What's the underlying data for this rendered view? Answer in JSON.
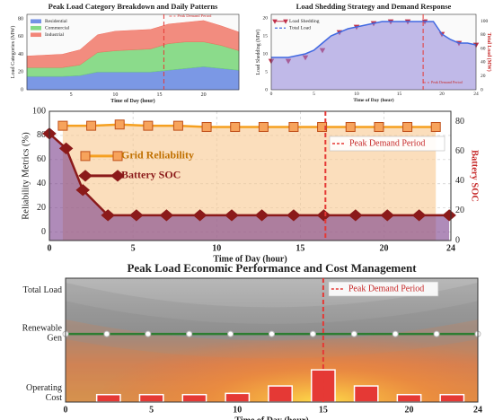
{
  "chart_data": [
    {
      "type": "area",
      "title": "Peak Load Category Breakdown and Daily Patterns",
      "xlabel": "Time of Day (hour)",
      "ylabel": "Load Categories (MW)",
      "x": [
        0,
        2,
        4,
        6,
        8,
        10,
        12,
        14,
        16,
        18,
        20,
        22,
        24
      ],
      "series": [
        {
          "name": "Residential",
          "color": "#5b7fe0",
          "values": [
            15,
            15,
            15,
            16,
            20,
            20,
            20,
            20,
            22,
            24,
            26,
            24,
            22
          ]
        },
        {
          "name": "Commercial",
          "color": "#6fd36f",
          "values": [
            10,
            10,
            10,
            12,
            22,
            24,
            25,
            26,
            30,
            30,
            28,
            26,
            22
          ]
        },
        {
          "name": "Industrial",
          "color": "#f07060",
          "values": [
            13,
            14,
            15,
            17,
            20,
            22,
            22,
            22,
            22,
            22,
            24,
            22,
            21
          ]
        }
      ],
      "xlim": [
        0,
        24
      ],
      "xticks": [
        5,
        10,
        15,
        20
      ],
      "ylim": [
        0,
        85
      ],
      "yticks": [
        0,
        20,
        40,
        60,
        80
      ],
      "legend": "upper left",
      "peak": {
        "x": 15.5,
        "label": "Peak Demand Period"
      }
    },
    {
      "type": "line",
      "title": "Load Shedding Strategy and Demand Response",
      "xlabel": "Time of Day (hour)",
      "ylabel": "Load Shedding (MW)",
      "y2label": "Total Load (MW)",
      "x": [
        0,
        1,
        2,
        3,
        4,
        5,
        6,
        7,
        8,
        9,
        10,
        11,
        12,
        13,
        14,
        15,
        16,
        17,
        18,
        19,
        20,
        21,
        22,
        23,
        24
      ],
      "series": [
        {
          "name": "Load Shedding",
          "color": "#c0304a",
          "marker": "triangle",
          "linestyle": "none",
          "x": [
            0,
            2,
            4,
            6,
            8,
            10,
            12,
            14,
            16,
            18,
            20,
            22,
            24
          ],
          "values": [
            8,
            8,
            9,
            11,
            16,
            17.5,
            18.5,
            19,
            19,
            19,
            15.5,
            13,
            12.5
          ]
        },
        {
          "name": "Total Load",
          "color": "#4169e1",
          "fill": "#8f84d8",
          "linestyle": "solid",
          "values": [
            9,
            9,
            9,
            9.5,
            10,
            11,
            13,
            15,
            16,
            17,
            17.5,
            18,
            18.5,
            19,
            19,
            19,
            19,
            19,
            19,
            19,
            15.5,
            14,
            13,
            13,
            12.5
          ]
        }
      ],
      "xlim": [
        0,
        24
      ],
      "xticks": [
        0,
        5,
        10,
        15,
        20,
        24
      ],
      "ylim": [
        0,
        21
      ],
      "yticks": [
        0,
        5,
        10,
        15,
        20
      ],
      "y2lim": [
        0,
        110
      ],
      "y2ticks": [
        0,
        20,
        40,
        60,
        80,
        100
      ],
      "legend": "upper left",
      "peak": {
        "x": 17.8,
        "label": "Peak Demand Period"
      }
    },
    {
      "type": "line",
      "xlabel": "Time of Day (hour)",
      "ylabel": "Reliability Metrics (%)",
      "y2label": "Battery SOC",
      "series": [
        {
          "name": "Grid Reliability",
          "color": "#f5a020",
          "fill": "#f9c890",
          "marker": "square",
          "linestyle": "solid",
          "x": [
            0.8,
            2.5,
            4.2,
            5.9,
            7.7,
            9.4,
            11.1,
            12.8,
            14.6,
            16.3,
            18.0,
            19.7,
            21.4,
            23.1
          ],
          "values": [
            88,
            88,
            89,
            88,
            88,
            87,
            87,
            87,
            87,
            87,
            87,
            87,
            87,
            87
          ]
        },
        {
          "name": "Battery SOC",
          "color": "#8b1a1a",
          "fill": "#7a3d8a",
          "marker": "diamond",
          "linestyle": "solid",
          "axis": "y2",
          "x": [
            0,
            1,
            2,
            3.5,
            5.2,
            7.0,
            9.0,
            10.9,
            12.7,
            14.6,
            16.4,
            18.3,
            20.2,
            22.1,
            23.9
          ],
          "values": [
            72,
            62,
            34,
            17,
            17,
            17,
            17,
            17,
            17,
            17,
            17,
            17,
            17,
            17,
            17
          ]
        }
      ],
      "xlim": [
        0,
        24
      ],
      "xticks": [
        0,
        5,
        10,
        15,
        20,
        24
      ],
      "ylim": [
        -7,
        100
      ],
      "yticks": [
        0,
        20,
        40,
        60,
        80,
        100
      ],
      "y2lim": [
        0,
        87
      ],
      "y2ticks": [
        0,
        20,
        40,
        60,
        80
      ],
      "grid": true,
      "legend": "center left",
      "peak": {
        "x": 16.5,
        "label": "Peak Demand Period"
      }
    },
    {
      "type": "bar",
      "title": "Peak Load Economic Performance and Cost Management",
      "xlabel": "Time of Day (hour)",
      "series": [
        {
          "color": "#e53935",
          "x": [
            2.5,
            5,
            7.5,
            10,
            12.5,
            15,
            17.5,
            20,
            22.5
          ],
          "values": [
            6,
            6,
            6,
            7,
            13,
            26,
            13,
            6,
            6
          ]
        },
        {
          "color": "#2e7d32",
          "marker": "circle",
          "linestyle": "solid",
          "x": [
            0,
            2.4,
            4.8,
            7.2,
            9.6,
            12,
            14.4,
            16.8,
            19.2,
            21.6,
            24
          ],
          "values": [
            55,
            55,
            55,
            55,
            55,
            55,
            55,
            55,
            55,
            55,
            55
          ]
        }
      ],
      "xlim": [
        0,
        24
      ],
      "xticks": [
        0,
        5,
        10,
        15,
        20,
        24
      ],
      "ylim": [
        0,
        100
      ],
      "yticks": [
        {
          "value": 7,
          "label": "Operating Cost"
        },
        {
          "value": 55,
          "label": "Renewable Gen"
        },
        {
          "value": 90,
          "label": "Total Load"
        }
      ],
      "peak": {
        "x": 15,
        "label": "Peak Demand Period"
      }
    }
  ]
}
